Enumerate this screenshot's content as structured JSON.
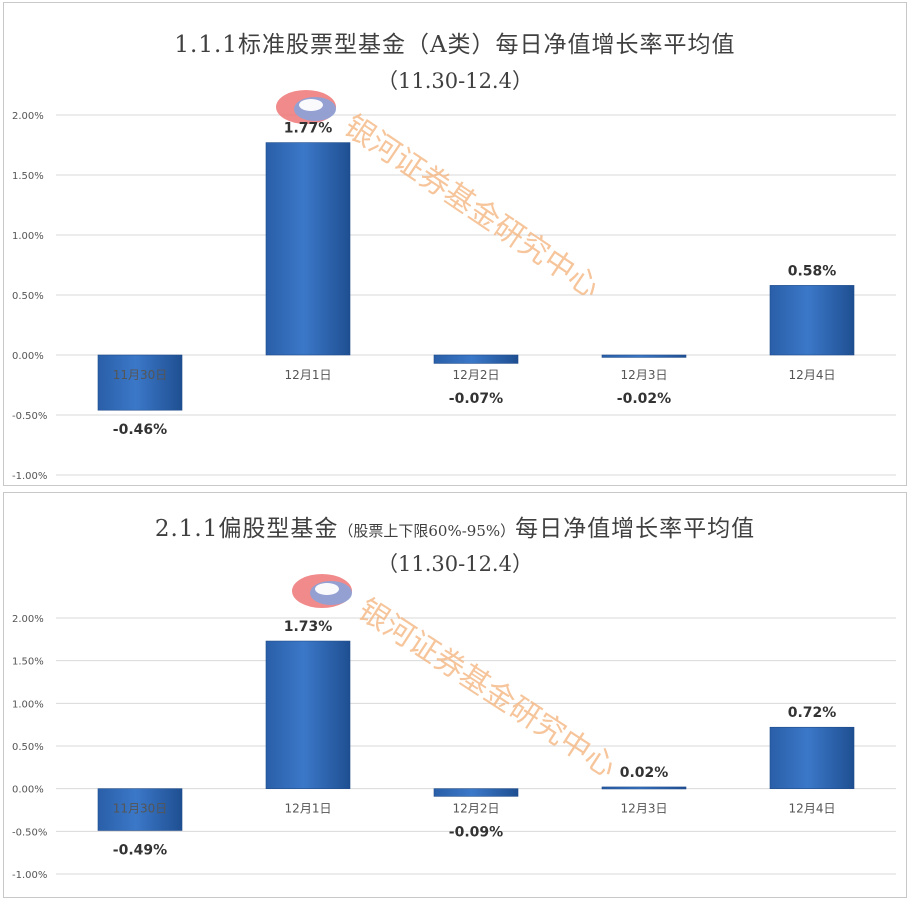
{
  "chart_data": [
    {
      "type": "bar",
      "title_main": "1.1.1标准股票型基金（A类）每日净值增长率平均值",
      "title_note": "",
      "subtitle": "（11.30-12.4）",
      "categories": [
        "11月30日",
        "12月1日",
        "12月2日",
        "12月3日",
        "12月4日"
      ],
      "values": [
        -0.46,
        1.77,
        -0.07,
        -0.02,
        0.58
      ],
      "value_labels": [
        "-0.46%",
        "1.77%",
        "-0.07%",
        "-0.02%",
        "0.58%"
      ],
      "yticks": [
        2.0,
        1.5,
        1.0,
        0.5,
        0.0,
        -0.5,
        -1.0
      ],
      "ytick_labels": [
        "2.00%",
        "1.50%",
        "1.00%",
        "0.50%",
        "0.00%",
        "-0.50%",
        "-1.00%"
      ],
      "ylim": [
        -1.0,
        2.0
      ],
      "grid": true,
      "watermark": "银河证券基金研究中心",
      "bar_color": "#3b78c8"
    },
    {
      "type": "bar",
      "title_main": "2.1.1偏股型基金",
      "title_note": "（股票上下限60%-95%）",
      "title_tail": "每日净值增长率平均值",
      "subtitle": "（11.30-12.4）",
      "categories": [
        "11月30日",
        "12月1日",
        "12月2日",
        "12月3日",
        "12月4日"
      ],
      "values": [
        -0.49,
        1.73,
        -0.09,
        0.02,
        0.72
      ],
      "value_labels": [
        "-0.49%",
        "1.73%",
        "-0.09%",
        "0.02%",
        "0.72%"
      ],
      "yticks": [
        2.0,
        1.5,
        1.0,
        0.5,
        0.0,
        -0.5,
        -1.0
      ],
      "ytick_labels": [
        "2.00%",
        "1.50%",
        "1.00%",
        "0.50%",
        "0.00%",
        "-0.50%",
        "-1.00%"
      ],
      "ylim": [
        -1.0,
        2.0
      ],
      "grid": true,
      "watermark": "银河证券基金研究中心",
      "bar_color": "#3b78c8"
    }
  ]
}
